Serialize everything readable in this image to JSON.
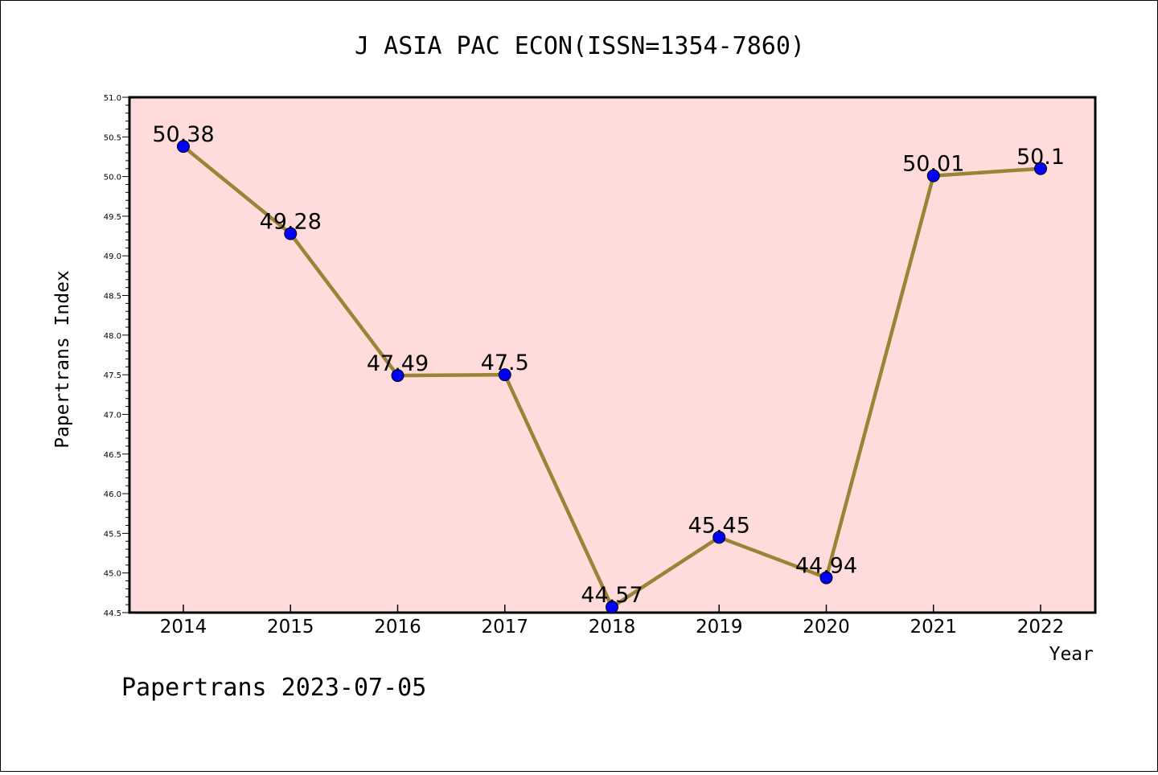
{
  "chart_data": {
    "type": "line",
    "title": "J ASIA PAC ECON(ISSN=1354-7860)",
    "xlabel": "Year",
    "ylabel": "Papertrans Index",
    "categories": [
      "2014",
      "2015",
      "2016",
      "2017",
      "2018",
      "2019",
      "2020",
      "2021",
      "2022"
    ],
    "series": [
      {
        "values": [
          50.38,
          49.28,
          47.49,
          47.5,
          44.57,
          45.45,
          44.94,
          50.01,
          50.1
        ],
        "labels": [
          "50.38",
          "49.28",
          "47.49",
          "47.5",
          "44.57",
          "45.45",
          "44.94",
          "50.01",
          "50.1"
        ]
      }
    ],
    "ylim": [
      44.5,
      51.0
    ],
    "yticks": [
      "44.5",
      "45.0",
      "45.5",
      "46.0",
      "46.5",
      "47.0",
      "47.5",
      "48.0",
      "48.5",
      "49.0",
      "49.5",
      "50.0",
      "50.5",
      "51.0"
    ],
    "grid": false,
    "legend": "none",
    "colors": {
      "plot_background": "#ffdcdb",
      "line": "#9a8236",
      "marker": "#0000ff"
    }
  },
  "footer": {
    "text": "Papertrans 2023-07-05"
  }
}
